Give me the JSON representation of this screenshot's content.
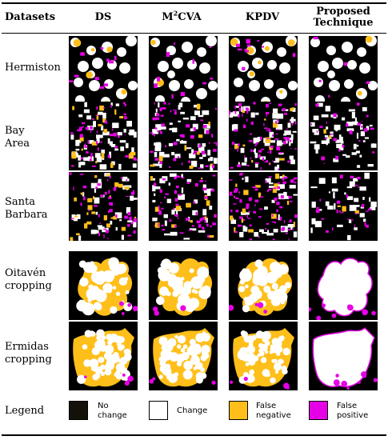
{
  "table": {
    "header": {
      "datasets": "Datasets",
      "ds": "DS",
      "m2cva_prefix": "M",
      "m2cva_sup": "2",
      "m2cva_suffix": "CVA",
      "kpdv": "KPDV",
      "proposed_line1": "Proposed",
      "proposed_line2": "Technique"
    },
    "rows": [
      {
        "line1": "Hermiston",
        "line2": ""
      },
      {
        "line1": "Bay",
        "line2": "Area"
      },
      {
        "line1": "Santa",
        "line2": "Barbara"
      },
      {
        "line1": "Oitavén",
        "line2": "cropping"
      },
      {
        "line1": "Ermidas",
        "line2": "cropping"
      }
    ],
    "legend": {
      "title": "Legend",
      "items": [
        {
          "line1": "No",
          "line2": "change",
          "color": "#14110b"
        },
        {
          "line1": "Change",
          "line2": "",
          "color": "#ffffff"
        },
        {
          "line1": "False",
          "line2": "negative",
          "color": "#ffbf1a"
        },
        {
          "line1": "False",
          "line2": "positive",
          "color": "#e600e6"
        }
      ]
    }
  },
  "colors": {
    "no_change": "#000000",
    "change": "#ffffff",
    "false_negative": "#ffbf1a",
    "false_positive": "#e600e6"
  }
}
